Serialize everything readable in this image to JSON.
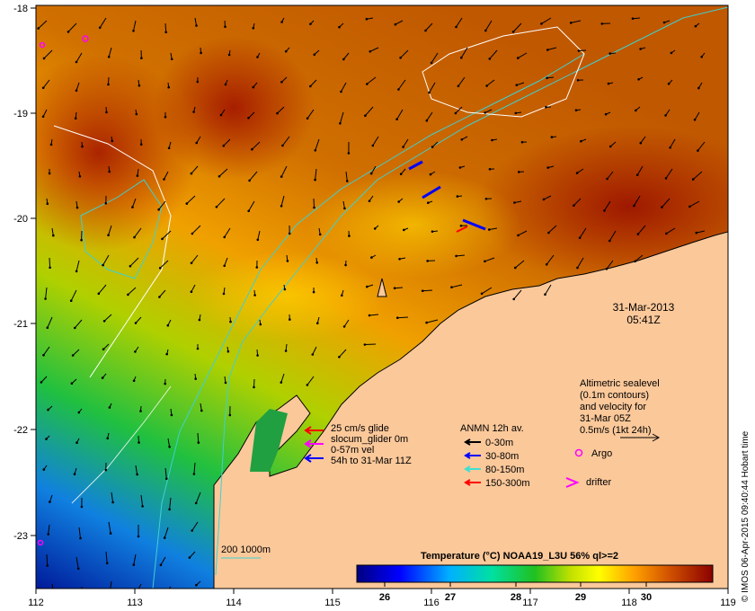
{
  "map": {
    "lon_ticks": [
      "112",
      "113",
      "114",
      "115",
      "116",
      "117",
      "118",
      "119"
    ],
    "lat_ticks": [
      "-18",
      "-19",
      "-20",
      "-21",
      "-22",
      "-23"
    ],
    "date_line1": "31-Mar-2013",
    "date_line2": "05:41Z",
    "altimetric": [
      "Altimetric sealevel",
      "(0.1m contours)",
      "and velocity for",
      "31-Mar 05Z",
      "0.5m/s (1kt 24h)"
    ],
    "glider_legend": [
      "25 cm/s glide",
      "slocum_glider 0m",
      "0-57m vel",
      "54h to 31-Mar 11Z"
    ],
    "anmn": {
      "title": "ANMN 12h av.",
      "items": [
        {
          "label": "0-30m",
          "color": "#000000"
        },
        {
          "label": "30-80m",
          "color": "#0000ff"
        },
        {
          "label": "80-150m",
          "color": "#40e0d0"
        },
        {
          "label": "150-300m",
          "color": "#ff0000"
        }
      ]
    },
    "argo_label": "Argo",
    "drifter_label": "drifter",
    "isobath_label": "200  1000m",
    "colorbar": {
      "title": "Temperature (°C) NOAA19_L3U 56% ql>=2",
      "ticks": [
        "26",
        "27",
        "28",
        "29",
        "30"
      ]
    },
    "credit": "© IMOS 06-Apr-2015 09:40:44 Hobart time",
    "colors": {
      "land": "#fbc89a",
      "isobath": "#40d0d0"
    }
  }
}
